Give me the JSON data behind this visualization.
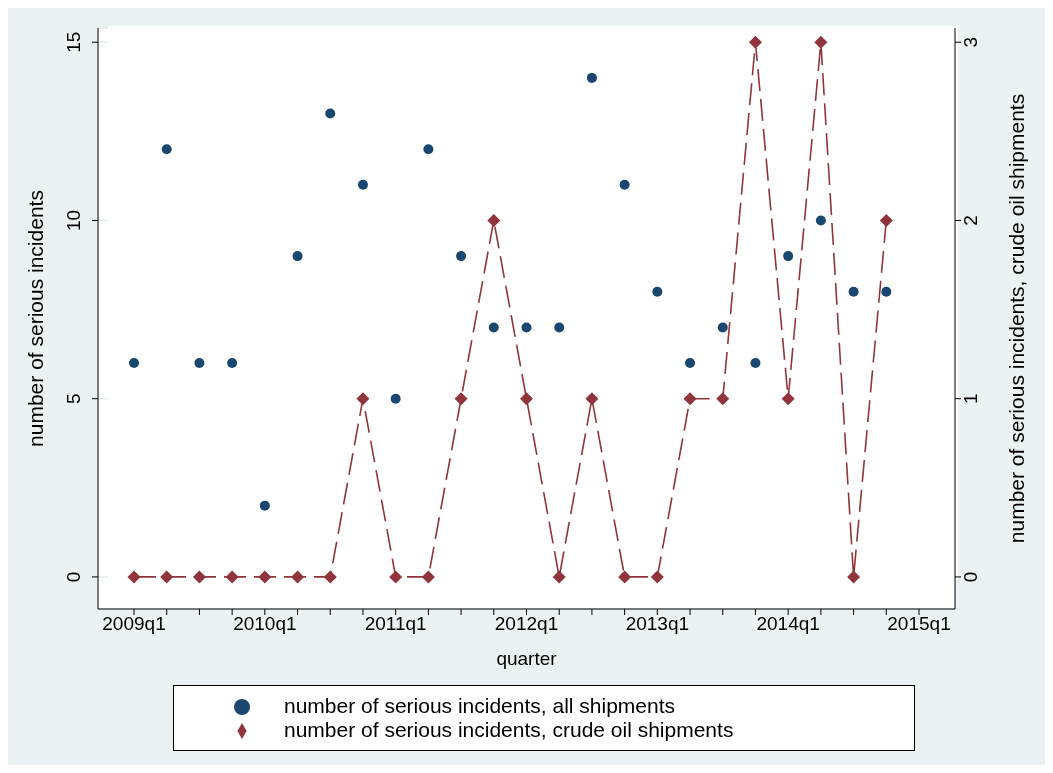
{
  "chart_data": {
    "type": "scatter",
    "xlabel": "quarter",
    "ylabel": "number of serious incidents",
    "y2label": "number of serious incidents, crude oil shipments",
    "categories": [
      "2009q1",
      null,
      null,
      null,
      "2010q1",
      null,
      null,
      null,
      "2011q1",
      null,
      null,
      null,
      "2012q1",
      null,
      null,
      null,
      "2013q1",
      null,
      null,
      null,
      "2014q1",
      null,
      null,
      null,
      "2015q1"
    ],
    "series": [
      {
        "name": "number of serious incidents, all shipments",
        "marker": "circle",
        "color": "#1a476f",
        "values": [
          6,
          12,
          6,
          6,
          2,
          9,
          13,
          11,
          5,
          12,
          9,
          7,
          7,
          7,
          14,
          11,
          8,
          6,
          7,
          6,
          9,
          10,
          8,
          8,
          null
        ]
      },
      {
        "name": "number of serious incidents, crude oil shipments",
        "type": "line",
        "axis": "y2",
        "marker": "diamond",
        "line_style": "dashed",
        "color": "#90353b",
        "values": [
          0,
          0,
          0,
          0,
          0,
          0,
          0,
          1,
          0,
          0,
          1,
          2,
          1,
          0,
          1,
          0,
          0,
          1,
          1,
          3,
          1,
          3,
          0,
          2,
          null
        ]
      }
    ],
    "ylim": [
      -0.9,
      15.4
    ],
    "yticks": [
      0,
      5,
      10,
      15
    ],
    "y2lim": [
      -0.18,
      3.08
    ],
    "y2ticks": [
      0,
      1,
      2,
      3
    ],
    "grid": "y",
    "legend": "bottom"
  }
}
